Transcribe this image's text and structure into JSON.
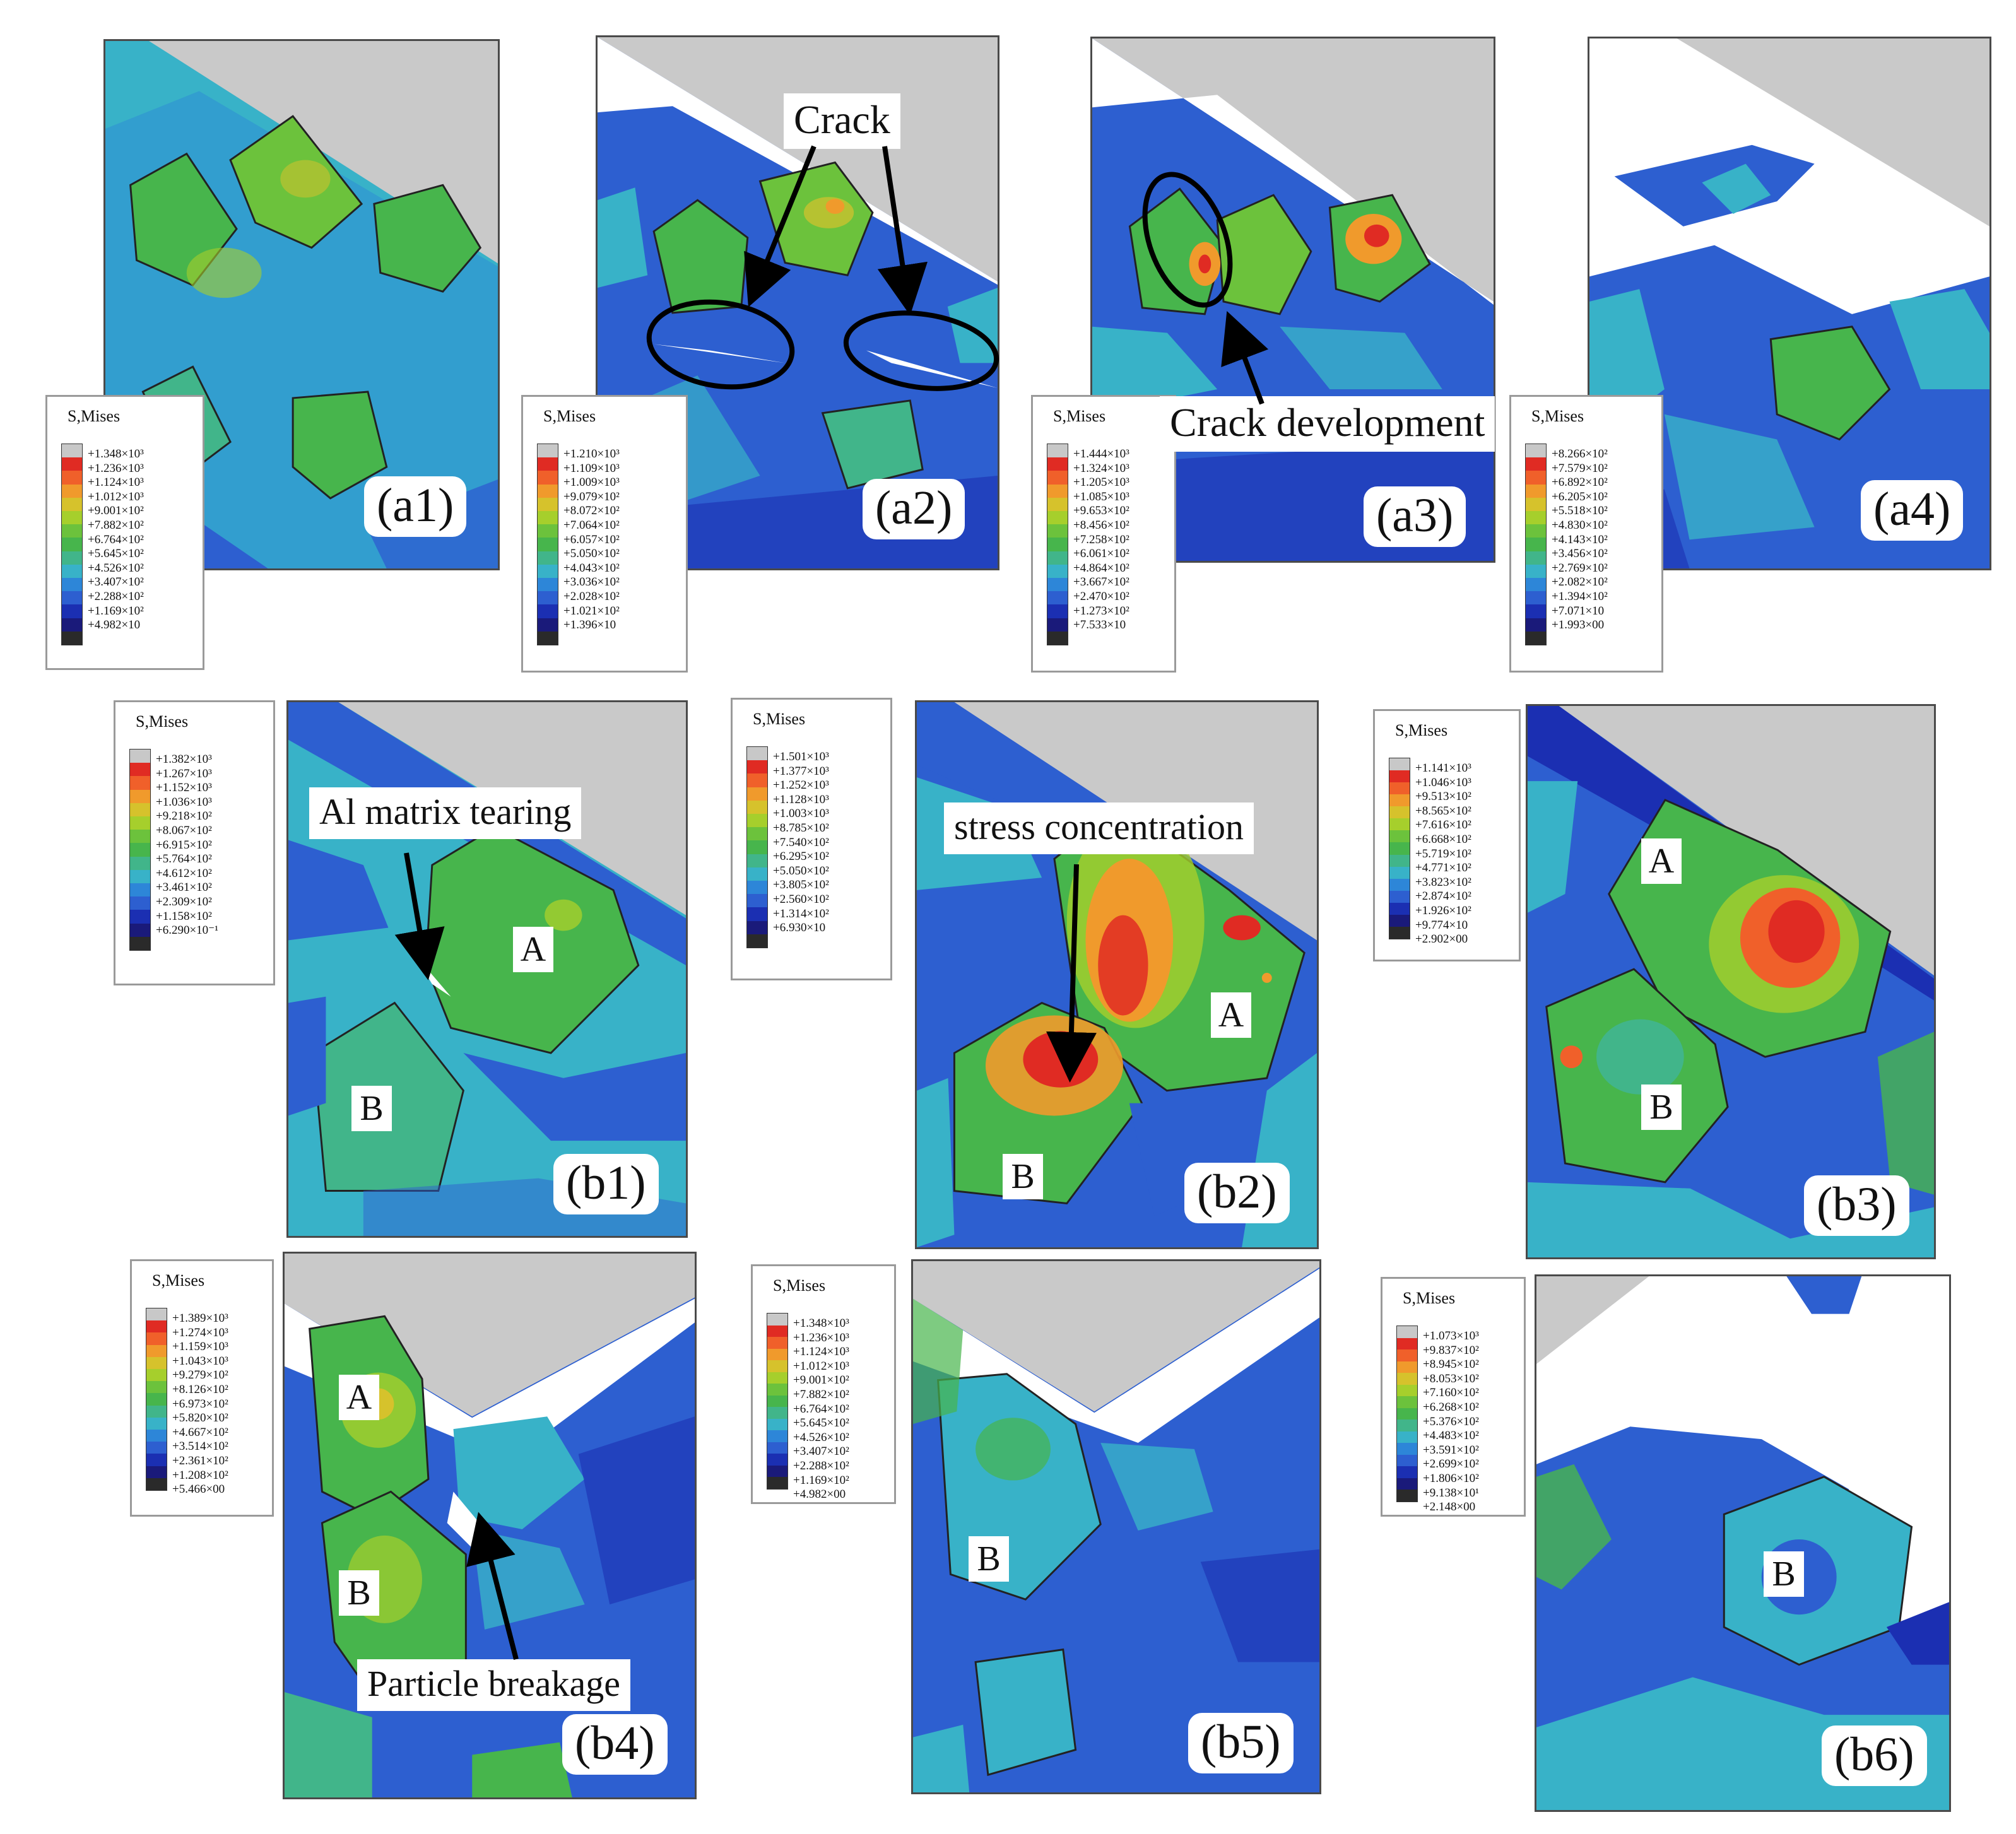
{
  "colors": {
    "matrix_blue": "#2d5fd0",
    "dark_blue": "#1b2fb2",
    "cyan": "#38b2c8",
    "green": "#47b54c",
    "yellow_green": "#a6cf2c",
    "orange": "#f09a2c",
    "red": "#e02b23",
    "tool_gray": "#c9c9c9"
  },
  "legend_colors": [
    "#c8c8c8",
    "#e02b23",
    "#f0602a",
    "#f09a2c",
    "#d6c22c",
    "#a6cf2c",
    "#6cc23c",
    "#47b54c",
    "#41b58a",
    "#38b2c8",
    "#2d86d8",
    "#2d5fd0",
    "#1b2fb2",
    "#1a1a7a",
    "#2a2a2a"
  ],
  "annotations": {
    "crack": "Crack",
    "crack_development": "Crack development",
    "al_matrix_tearing": "Al matrix tearing",
    "stress_concentration": "stress concentration",
    "particle_breakage": "Particle breakage"
  },
  "panels": [
    {
      "id": "a1",
      "label": "(a1)",
      "legend": {
        "title": "S,Mises",
        "values": [
          "+1.348×10³",
          "+1.236×10³",
          "+1.124×10³",
          "+1.012×10³",
          "+9.001×10²",
          "+7.882×10²",
          "+6.764×10²",
          "+5.645×10²",
          "+4.526×10²",
          "+3.407×10²",
          "+2.288×10²",
          "+1.169×10²",
          "+4.982×10"
        ]
      }
    },
    {
      "id": "a2",
      "label": "(a2)",
      "legend": {
        "title": "S,Mises",
        "values": [
          "+1.210×10³",
          "+1.109×10³",
          "+1.009×10³",
          "+9.079×10²",
          "+8.072×10²",
          "+7.064×10²",
          "+6.057×10²",
          "+5.050×10²",
          "+4.043×10²",
          "+3.036×10²",
          "+2.028×10²",
          "+1.021×10²",
          "+1.396×10"
        ]
      }
    },
    {
      "id": "a3",
      "label": "(a3)",
      "legend": {
        "title": "S,Mises",
        "values": [
          "+1.444×10³",
          "+1.324×10³",
          "+1.205×10³",
          "+1.085×10³",
          "+9.653×10²",
          "+8.456×10²",
          "+7.258×10²",
          "+6.061×10²",
          "+4.864×10²",
          "+3.667×10²",
          "+2.470×10²",
          "+1.273×10²",
          "+7.533×10"
        ]
      }
    },
    {
      "id": "a4",
      "label": "(a4)",
      "legend": {
        "title": "S,Mises",
        "values": [
          "+8.266×10²",
          "+7.579×10²",
          "+6.892×10²",
          "+6.205×10²",
          "+5.518×10²",
          "+4.830×10²",
          "+4.143×10²",
          "+3.456×10²",
          "+2.769×10²",
          "+2.082×10²",
          "+1.394×10²",
          "+7.071×10",
          "+1.993×00"
        ]
      }
    },
    {
      "id": "b1",
      "label": "(b1)",
      "grains": [
        "A",
        "B"
      ],
      "legend": {
        "title": "S,Mises",
        "values": [
          "+1.382×10³",
          "+1.267×10³",
          "+1.152×10³",
          "+1.036×10³",
          "+9.218×10²",
          "+8.067×10²",
          "+6.915×10²",
          "+5.764×10²",
          "+4.612×10²",
          "+3.461×10²",
          "+2.309×10²",
          "+1.158×10²",
          "+6.290×10⁻¹"
        ]
      }
    },
    {
      "id": "b2",
      "label": "(b2)",
      "grains": [
        "A",
        "B"
      ],
      "legend": {
        "title": "S,Mises",
        "values": [
          "+1.501×10³",
          "+1.377×10³",
          "+1.252×10³",
          "+1.128×10³",
          "+1.003×10³",
          "+8.785×10²",
          "+7.540×10²",
          "+6.295×10²",
          "+5.050×10²",
          "+3.805×10²",
          "+2.560×10²",
          "+1.314×10²",
          "+6.930×10"
        ]
      }
    },
    {
      "id": "b3",
      "label": "(b3)",
      "grains": [
        "A",
        "B"
      ],
      "legend": {
        "title": "S,Mises",
        "values": [
          "+1.141×10³",
          "+1.046×10³",
          "+9.513×10²",
          "+8.565×10²",
          "+7.616×10²",
          "+6.668×10²",
          "+5.719×10²",
          "+4.771×10²",
          "+3.823×10²",
          "+2.874×10²",
          "+1.926×10²",
          "+9.774×10",
          "+2.902×00"
        ]
      }
    },
    {
      "id": "b4",
      "label": "(b4)",
      "grains": [
        "A",
        "B"
      ],
      "legend": {
        "title": "S,Mises",
        "values": [
          "+1.389×10³",
          "+1.274×10³",
          "+1.159×10³",
          "+1.043×10³",
          "+9.279×10²",
          "+8.126×10²",
          "+6.973×10²",
          "+5.820×10²",
          "+4.667×10²",
          "+3.514×10²",
          "+2.361×10²",
          "+1.208×10²",
          "+5.466×00"
        ]
      }
    },
    {
      "id": "b5",
      "label": "(b5)",
      "grains": [
        "B"
      ],
      "legend": {
        "title": "S,Mises",
        "values": [
          "+1.348×10³",
          "+1.236×10³",
          "+1.124×10³",
          "+1.012×10³",
          "+9.001×10²",
          "+7.882×10²",
          "+6.764×10²",
          "+5.645×10²",
          "+4.526×10²",
          "+3.407×10²",
          "+2.288×10²",
          "+1.169×10²",
          "+4.982×00"
        ]
      }
    },
    {
      "id": "b6",
      "label": "(b6)",
      "grains": [
        "B"
      ],
      "legend": {
        "title": "S,Mises",
        "values": [
          "+1.073×10³",
          "+9.837×10²",
          "+8.945×10²",
          "+8.053×10²",
          "+7.160×10²",
          "+6.268×10²",
          "+5.376×10²",
          "+4.483×10²",
          "+3.591×10²",
          "+2.699×10²",
          "+1.806×10²",
          "+9.138×10¹",
          "+2.148×00"
        ]
      }
    }
  ]
}
